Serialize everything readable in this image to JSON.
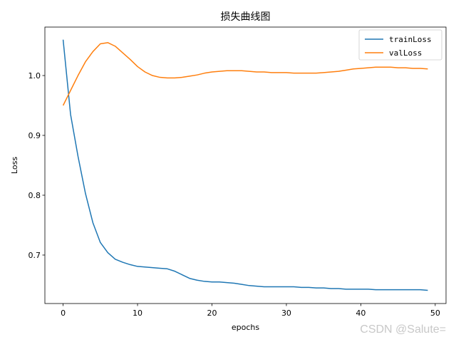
{
  "chart_data": {
    "type": "line",
    "title": "损失曲线图",
    "xlabel": "epochs",
    "ylabel": "Loss",
    "xlim": [
      -2.45,
      51.45
    ],
    "ylim": [
      0.619,
      1.081
    ],
    "xticks": [
      0,
      10,
      20,
      30,
      40,
      50
    ],
    "yticks": [
      0.7,
      0.8,
      0.9,
      1.0
    ],
    "legend_position": "top-right",
    "grid": false,
    "series": [
      {
        "name": "trainLoss",
        "color": "#1f77b4",
        "x": [
          0,
          1,
          2,
          3,
          4,
          5,
          6,
          7,
          8,
          9,
          10,
          11,
          12,
          13,
          14,
          15,
          16,
          17,
          18,
          19,
          20,
          21,
          22,
          23,
          24,
          25,
          26,
          27,
          28,
          29,
          30,
          31,
          32,
          33,
          34,
          35,
          36,
          37,
          38,
          39,
          40,
          41,
          42,
          43,
          44,
          45,
          46,
          47,
          48,
          49
        ],
        "y": [
          1.06,
          0.935,
          0.865,
          0.803,
          0.754,
          0.721,
          0.704,
          0.693,
          0.688,
          0.684,
          0.681,
          0.68,
          0.679,
          0.678,
          0.677,
          0.673,
          0.667,
          0.661,
          0.658,
          0.656,
          0.655,
          0.655,
          0.654,
          0.653,
          0.651,
          0.649,
          0.648,
          0.647,
          0.647,
          0.647,
          0.647,
          0.647,
          0.646,
          0.646,
          0.645,
          0.645,
          0.644,
          0.644,
          0.643,
          0.643,
          0.643,
          0.643,
          0.642,
          0.642,
          0.642,
          0.642,
          0.642,
          0.642,
          0.642,
          0.641
        ]
      },
      {
        "name": "valLoss",
        "color": "#ff7f0e",
        "x": [
          0,
          1,
          2,
          3,
          4,
          5,
          6,
          7,
          8,
          9,
          10,
          11,
          12,
          13,
          14,
          15,
          16,
          17,
          18,
          19,
          20,
          21,
          22,
          23,
          24,
          25,
          26,
          27,
          28,
          29,
          30,
          31,
          32,
          33,
          34,
          35,
          36,
          37,
          38,
          39,
          40,
          41,
          42,
          43,
          44,
          45,
          46,
          47,
          48,
          49
        ],
        "y": [
          0.95,
          0.975,
          1.0,
          1.023,
          1.04,
          1.053,
          1.055,
          1.049,
          1.038,
          1.027,
          1.015,
          1.006,
          1.0,
          0.997,
          0.996,
          0.996,
          0.997,
          0.999,
          1.001,
          1.004,
          1.006,
          1.007,
          1.008,
          1.008,
          1.008,
          1.007,
          1.006,
          1.006,
          1.005,
          1.005,
          1.005,
          1.004,
          1.004,
          1.004,
          1.004,
          1.005,
          1.006,
          1.007,
          1.009,
          1.011,
          1.012,
          1.013,
          1.014,
          1.014,
          1.014,
          1.013,
          1.013,
          1.012,
          1.012,
          1.011
        ]
      }
    ]
  },
  "watermark": "CSDN @Salute="
}
